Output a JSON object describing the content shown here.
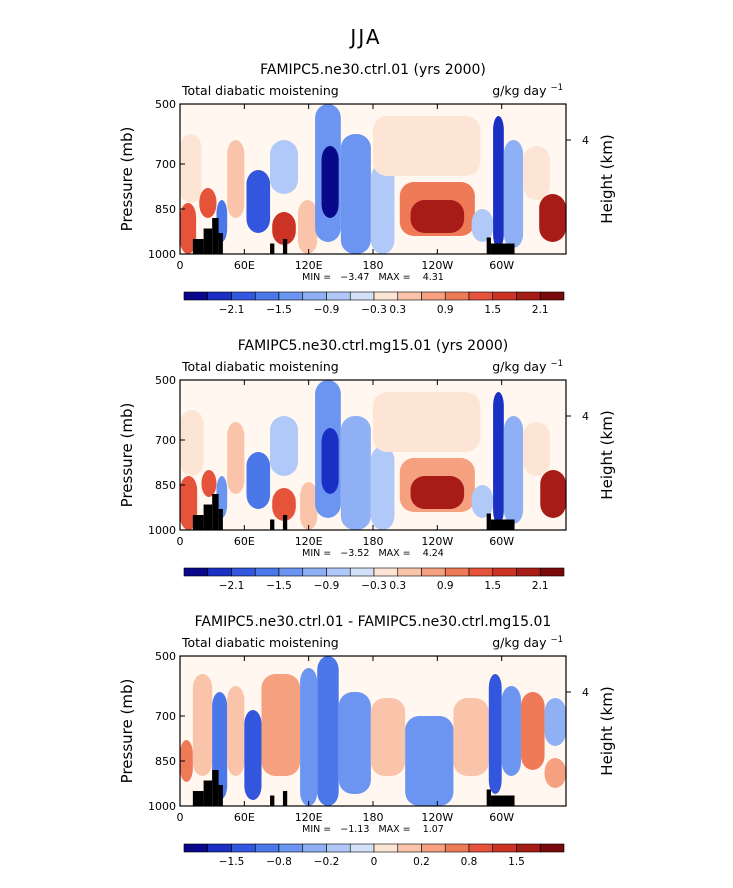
{
  "figure_title": "JJA",
  "chart_data": [
    {
      "type": "heatmap",
      "title": "FAMIPC5.ne30.ctrl.01 (yrs 2000)",
      "subtitle_left": "Total diabatic moistening",
      "units": "g/kg day",
      "units_exponent": "−1",
      "xlabel": "",
      "ylabel": "Pressure (mb)",
      "ylabel_right": "Height (km)",
      "x_ticks": [
        "0",
        "60E",
        "120E",
        "180",
        "120W",
        "60W"
      ],
      "x_tick_lon": [
        0,
        60,
        120,
        180,
        240,
        300
      ],
      "xlim": [
        0,
        360
      ],
      "y_ticks": [
        "500",
        "700",
        "850",
        "1000"
      ],
      "y_tick_values": [
        500,
        700,
        850,
        1000
      ],
      "ylim": [
        500,
        1000
      ],
      "y_right_ticks": [
        "4"
      ],
      "y_right_tick_pressure": [
        620
      ],
      "min_max_label": "MIN =   −3.47   MAX =    4.31",
      "colorbar_labels": [
        "−2.1",
        "−1.5",
        "−0.9",
        "−0.3",
        "0.3",
        "0.9",
        "1.5",
        "2.1"
      ],
      "colorbar_label_levels": [
        -2.1,
        -1.5,
        -0.9,
        -0.3,
        0.3,
        0.9,
        1.5,
        2.1
      ],
      "levels": [
        -2.4,
        -2.1,
        -1.8,
        -1.5,
        -1.2,
        -0.9,
        -0.6,
        -0.3,
        0.3,
        0.6,
        0.9,
        1.2,
        1.5,
        1.8,
        2.1,
        2.4
      ],
      "colors": [
        "#08088a",
        "#1a2fc4",
        "#3256dd",
        "#4a78e8",
        "#6b95f0",
        "#8fb0f5",
        "#b1c9f8",
        "#d3e1f8",
        "#fde5d6",
        "#f9c4a9",
        "#f5a07e",
        "#ef7a57",
        "#e4533a",
        "#cc3324",
        "#a81c17",
        "#7a0a0a"
      ],
      "cells": [
        {
          "x0": 0,
          "x1": 15,
          "y0": 830,
          "y1": 1000,
          "v": 1.6
        },
        {
          "x0": 0,
          "x1": 20,
          "y0": 600,
          "y1": 830,
          "v": 0.4
        },
        {
          "x0": 18,
          "x1": 34,
          "y0": 780,
          "y1": 880,
          "v": 1.7
        },
        {
          "x0": 34,
          "x1": 44,
          "y0": 820,
          "y1": 960,
          "v": -1.3
        },
        {
          "x0": 44,
          "x1": 60,
          "y0": 620,
          "y1": 880,
          "v": 0.7
        },
        {
          "x0": 62,
          "x1": 84,
          "y0": 720,
          "y1": 930,
          "v": -1.6
        },
        {
          "x0": 86,
          "x1": 108,
          "y0": 860,
          "y1": 970,
          "v": 1.8
        },
        {
          "x0": 84,
          "x1": 110,
          "y0": 620,
          "y1": 800,
          "v": -0.4
        },
        {
          "x0": 110,
          "x1": 128,
          "y0": 820,
          "y1": 1000,
          "v": 0.6
        },
        {
          "x0": 126,
          "x1": 150,
          "y0": 500,
          "y1": 960,
          "v": -1.2
        },
        {
          "x0": 132,
          "x1": 148,
          "y0": 640,
          "y1": 880,
          "v": -2.3
        },
        {
          "x0": 150,
          "x1": 178,
          "y0": 600,
          "y1": 1000,
          "v": -1.0
        },
        {
          "x0": 178,
          "x1": 200,
          "y0": 700,
          "y1": 1000,
          "v": -0.4
        },
        {
          "x0": 205,
          "x1": 275,
          "y0": 760,
          "y1": 940,
          "v": 1.2
        },
        {
          "x0": 215,
          "x1": 265,
          "y0": 820,
          "y1": 930,
          "v": 2.2
        },
        {
          "x0": 180,
          "x1": 280,
          "y0": 540,
          "y1": 740,
          "v": 0.3
        },
        {
          "x0": 272,
          "x1": 292,
          "y0": 850,
          "y1": 960,
          "v": -0.5
        },
        {
          "x0": 292,
          "x1": 302,
          "y0": 540,
          "y1": 980,
          "v": -2.0
        },
        {
          "x0": 302,
          "x1": 320,
          "y0": 620,
          "y1": 980,
          "v": -0.9
        },
        {
          "x0": 320,
          "x1": 345,
          "y0": 640,
          "y1": 820,
          "v": 0.4
        },
        {
          "x0": 335,
          "x1": 360,
          "y0": 800,
          "y1": 960,
          "v": 2.3
        }
      ],
      "topography": [
        {
          "x0": 12,
          "x1": 22,
          "p_top": 950
        },
        {
          "x0": 22,
          "x1": 30,
          "p_top": 915
        },
        {
          "x0": 30,
          "x1": 36,
          "p_top": 880
        },
        {
          "x0": 36,
          "x1": 40,
          "p_top": 930
        },
        {
          "x0": 84,
          "x1": 88,
          "p_top": 965
        },
        {
          "x0": 96,
          "x1": 100,
          "p_top": 950
        },
        {
          "x0": 286,
          "x1": 290,
          "p_top": 945
        },
        {
          "x0": 290,
          "x1": 312,
          "p_top": 965
        }
      ]
    },
    {
      "type": "heatmap",
      "title": "FAMIPC5.ne30.ctrl.mg15.01 (yrs 2000)",
      "subtitle_left": "Total diabatic moistening",
      "units": "g/kg day",
      "units_exponent": "−1",
      "xlabel": "",
      "ylabel": "Pressure (mb)",
      "ylabel_right": "Height (km)",
      "x_ticks": [
        "0",
        "60E",
        "120E",
        "180",
        "120W",
        "60W"
      ],
      "x_tick_lon": [
        0,
        60,
        120,
        180,
        240,
        300
      ],
      "xlim": [
        0,
        360
      ],
      "y_ticks": [
        "500",
        "700",
        "850",
        "1000"
      ],
      "y_tick_values": [
        500,
        700,
        850,
        1000
      ],
      "ylim": [
        500,
        1000
      ],
      "y_right_ticks": [
        "4"
      ],
      "y_right_tick_pressure": [
        620
      ],
      "min_max_label": "MIN =   −3.52   MAX =    4.24",
      "colorbar_labels": [
        "−2.1",
        "−1.5",
        "−0.9",
        "−0.3",
        "0.3",
        "0.9",
        "1.5",
        "2.1"
      ],
      "colorbar_label_levels": [
        -2.1,
        -1.5,
        -0.9,
        -0.3,
        0.3,
        0.9,
        1.5,
        2.1
      ],
      "levels": [
        -2.4,
        -2.1,
        -1.8,
        -1.5,
        -1.2,
        -0.9,
        -0.6,
        -0.3,
        0.3,
        0.6,
        0.9,
        1.2,
        1.5,
        1.8,
        2.1,
        2.4
      ],
      "colors": [
        "#08088a",
        "#1a2fc4",
        "#3256dd",
        "#4a78e8",
        "#6b95f0",
        "#8fb0f5",
        "#b1c9f8",
        "#d3e1f8",
        "#fde5d6",
        "#f9c4a9",
        "#f5a07e",
        "#ef7a57",
        "#e4533a",
        "#cc3324",
        "#a81c17",
        "#7a0a0a"
      ],
      "cells": [
        {
          "x0": 0,
          "x1": 16,
          "y0": 820,
          "y1": 1000,
          "v": 1.5
        },
        {
          "x0": 0,
          "x1": 22,
          "y0": 600,
          "y1": 820,
          "v": 0.4
        },
        {
          "x0": 20,
          "x1": 34,
          "y0": 800,
          "y1": 890,
          "v": 1.6
        },
        {
          "x0": 34,
          "x1": 44,
          "y0": 820,
          "y1": 960,
          "v": -1.2
        },
        {
          "x0": 44,
          "x1": 60,
          "y0": 640,
          "y1": 880,
          "v": 0.6
        },
        {
          "x0": 62,
          "x1": 84,
          "y0": 740,
          "y1": 930,
          "v": -1.3
        },
        {
          "x0": 86,
          "x1": 108,
          "y0": 860,
          "y1": 970,
          "v": 1.5
        },
        {
          "x0": 84,
          "x1": 110,
          "y0": 620,
          "y1": 820,
          "v": -0.4
        },
        {
          "x0": 112,
          "x1": 128,
          "y0": 840,
          "y1": 1000,
          "v": 0.6
        },
        {
          "x0": 126,
          "x1": 150,
          "y0": 500,
          "y1": 960,
          "v": -1.1
        },
        {
          "x0": 132,
          "x1": 148,
          "y0": 660,
          "y1": 880,
          "v": -2.0
        },
        {
          "x0": 150,
          "x1": 178,
          "y0": 620,
          "y1": 1000,
          "v": -0.9
        },
        {
          "x0": 178,
          "x1": 200,
          "y0": 720,
          "y1": 1000,
          "v": -0.4
        },
        {
          "x0": 205,
          "x1": 275,
          "y0": 760,
          "y1": 940,
          "v": 1.1
        },
        {
          "x0": 215,
          "x1": 265,
          "y0": 820,
          "y1": 930,
          "v": 2.1
        },
        {
          "x0": 180,
          "x1": 280,
          "y0": 540,
          "y1": 740,
          "v": 0.3
        },
        {
          "x0": 272,
          "x1": 292,
          "y0": 850,
          "y1": 960,
          "v": -0.5
        },
        {
          "x0": 292,
          "x1": 302,
          "y0": 540,
          "y1": 980,
          "v": -1.9
        },
        {
          "x0": 302,
          "x1": 320,
          "y0": 620,
          "y1": 980,
          "v": -0.8
        },
        {
          "x0": 320,
          "x1": 345,
          "y0": 640,
          "y1": 820,
          "v": 0.4
        },
        {
          "x0": 336,
          "x1": 360,
          "y0": 800,
          "y1": 960,
          "v": 2.2
        }
      ],
      "topography": [
        {
          "x0": 12,
          "x1": 22,
          "p_top": 950
        },
        {
          "x0": 22,
          "x1": 30,
          "p_top": 915
        },
        {
          "x0": 30,
          "x1": 36,
          "p_top": 880
        },
        {
          "x0": 36,
          "x1": 40,
          "p_top": 930
        },
        {
          "x0": 84,
          "x1": 88,
          "p_top": 965
        },
        {
          "x0": 96,
          "x1": 100,
          "p_top": 950
        },
        {
          "x0": 286,
          "x1": 290,
          "p_top": 945
        },
        {
          "x0": 290,
          "x1": 312,
          "p_top": 965
        }
      ]
    },
    {
      "type": "heatmap",
      "title": "FAMIPC5.ne30.ctrl.01 - FAMIPC5.ne30.ctrl.mg15.01",
      "subtitle_left": "Total diabatic moistening",
      "units": "g/kg day",
      "units_exponent": "−1",
      "xlabel": "",
      "ylabel": "Pressure (mb)",
      "ylabel_right": "Height (km)",
      "x_ticks": [
        "0",
        "60E",
        "120E",
        "180",
        "120W",
        "60W"
      ],
      "x_tick_lon": [
        0,
        60,
        120,
        180,
        240,
        300
      ],
      "xlim": [
        0,
        360
      ],
      "y_ticks": [
        "500",
        "700",
        "850",
        "1000"
      ],
      "y_tick_values": [
        500,
        700,
        850,
        1000
      ],
      "ylim": [
        500,
        1000
      ],
      "y_right_ticks": [
        "4"
      ],
      "y_right_tick_pressure": [
        620
      ],
      "min_max_label": "MIN =   −1.13   MAX =    1.07",
      "colorbar_labels": [
        "−1.5",
        "−0.8",
        "−0.2",
        "0",
        "0.2",
        "0.8",
        "1.5"
      ],
      "colorbar_label_levels": [
        -1.5,
        -0.8,
        -0.2,
        0,
        0.2,
        0.8,
        1.5
      ],
      "levels": [
        -2.0,
        -1.5,
        -1.0,
        -0.8,
        -0.5,
        -0.2,
        -0.1,
        0,
        0.1,
        0.2,
        0.5,
        0.8,
        1.0,
        1.5,
        2.0
      ],
      "colors": [
        "#08088a",
        "#1a2fc4",
        "#3256dd",
        "#4a78e8",
        "#6b95f0",
        "#8fb0f5",
        "#b1c9f8",
        "#d3e1f8",
        "#fde5d6",
        "#f9c4a9",
        "#f5a07e",
        "#ef7a57",
        "#e4533a",
        "#cc3324",
        "#a81c17",
        "#7a0a0a"
      ],
      "cells": [
        {
          "x0": 0,
          "x1": 12,
          "y0": 780,
          "y1": 920,
          "v": 0.9
        },
        {
          "x0": 12,
          "x1": 30,
          "y0": 560,
          "y1": 900,
          "v": 0.3
        },
        {
          "x0": 30,
          "x1": 44,
          "y0": 620,
          "y1": 980,
          "v": -0.6
        },
        {
          "x0": 44,
          "x1": 60,
          "y0": 600,
          "y1": 900,
          "v": 0.4
        },
        {
          "x0": 60,
          "x1": 76,
          "y0": 680,
          "y1": 980,
          "v": -0.9
        },
        {
          "x0": 76,
          "x1": 112,
          "y0": 560,
          "y1": 900,
          "v": 0.5
        },
        {
          "x0": 112,
          "x1": 128,
          "y0": 540,
          "y1": 1000,
          "v": -0.5
        },
        {
          "x0": 128,
          "x1": 148,
          "y0": 500,
          "y1": 1000,
          "v": -0.8
        },
        {
          "x0": 148,
          "x1": 178,
          "y0": 620,
          "y1": 960,
          "v": -0.4
        },
        {
          "x0": 178,
          "x1": 210,
          "y0": 640,
          "y1": 900,
          "v": 0.2
        },
        {
          "x0": 210,
          "x1": 255,
          "y0": 700,
          "y1": 1000,
          "v": -0.3
        },
        {
          "x0": 255,
          "x1": 288,
          "y0": 640,
          "y1": 900,
          "v": 0.3
        },
        {
          "x0": 288,
          "x1": 300,
          "y0": 560,
          "y1": 960,
          "v": -0.9
        },
        {
          "x0": 300,
          "x1": 318,
          "y0": 600,
          "y1": 900,
          "v": -0.3
        },
        {
          "x0": 318,
          "x1": 340,
          "y0": 620,
          "y1": 880,
          "v": 0.8
        },
        {
          "x0": 340,
          "x1": 360,
          "y0": 840,
          "y1": 940,
          "v": 0.5
        },
        {
          "x0": 340,
          "x1": 360,
          "y0": 640,
          "y1": 800,
          "v": -0.2
        }
      ],
      "topography": [
        {
          "x0": 12,
          "x1": 22,
          "p_top": 950
        },
        {
          "x0": 22,
          "x1": 30,
          "p_top": 915
        },
        {
          "x0": 30,
          "x1": 36,
          "p_top": 880
        },
        {
          "x0": 36,
          "x1": 40,
          "p_top": 930
        },
        {
          "x0": 84,
          "x1": 88,
          "p_top": 965
        },
        {
          "x0": 96,
          "x1": 100,
          "p_top": 950
        },
        {
          "x0": 286,
          "x1": 290,
          "p_top": 945
        },
        {
          "x0": 290,
          "x1": 312,
          "p_top": 965
        }
      ]
    }
  ]
}
